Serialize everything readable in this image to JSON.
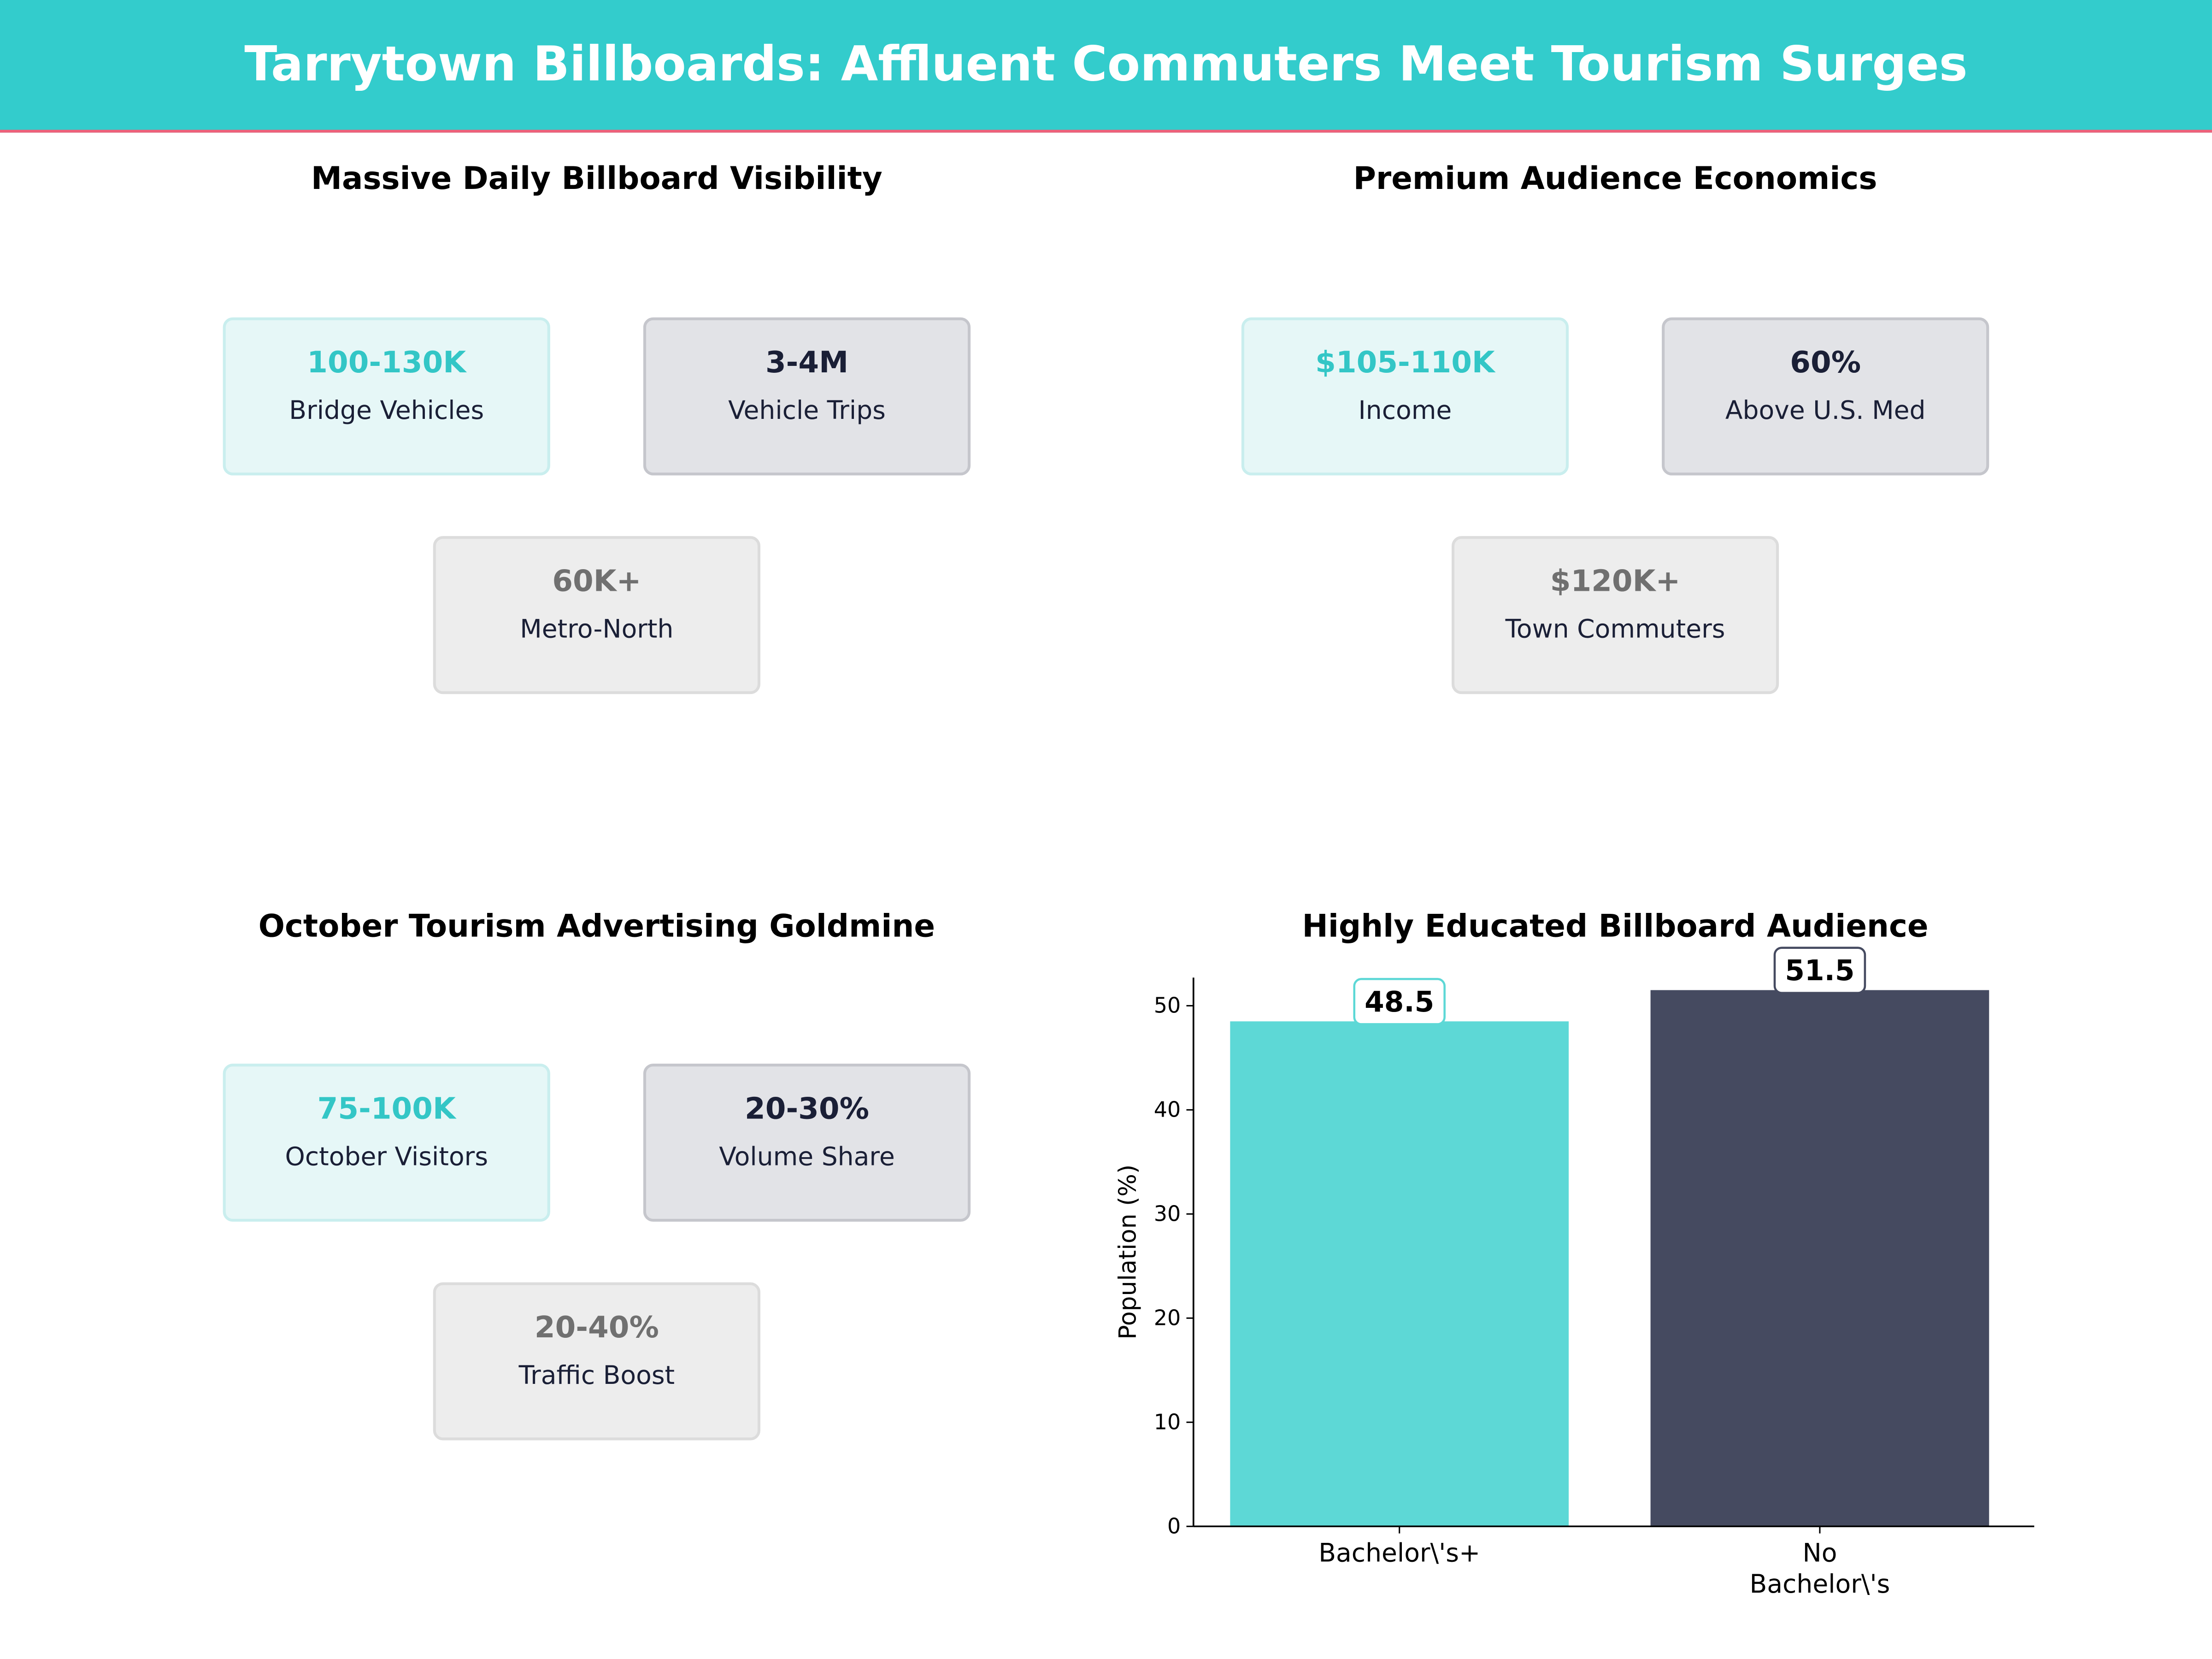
{
  "title": "Tarrytown Billboards: Affluent Commuters Meet Tourism Surges",
  "colors": {
    "header": "#33cccc",
    "accent_line": "#ef6079",
    "teal": "#5dd8d6",
    "navy": "#454a60"
  },
  "panels": [
    {
      "title": "Massive Daily Billboard Visibility",
      "cards": [
        {
          "value": "100-130K",
          "label": "Bridge Vehicles"
        },
        {
          "value": "3-4M",
          "label": "Vehicle Trips"
        },
        {
          "value": "60K+",
          "label": "Metro-North"
        }
      ]
    },
    {
      "title": "Premium Audience Economics",
      "cards": [
        {
          "value": "$105-110K",
          "label": "Income"
        },
        {
          "value": "60%",
          "label": "Above U.S. Med"
        },
        {
          "value": "$120K+",
          "label": "Town Commuters"
        }
      ]
    },
    {
      "title": "October Tourism Advertising Goldmine",
      "cards": [
        {
          "value": "75-100K",
          "label": "October Visitors"
        },
        {
          "value": "20-30%",
          "label": "Volume Share"
        },
        {
          "value": "20-40%",
          "label": "Traffic Boost"
        }
      ]
    }
  ],
  "chart_data": {
    "type": "bar",
    "title": "Highly Educated Billboard Audience",
    "categories": [
      "Bachelor\\'s+",
      "No\nBachelor\\'s"
    ],
    "values": [
      48.5,
      51.5
    ],
    "data_labels": [
      "48.5",
      "51.5"
    ],
    "colors": [
      "#5dd8d6",
      "#454a60"
    ],
    "ylabel": "Population (%)",
    "xlabel": "",
    "ylim": [
      0,
      52.7
    ],
    "yticks": [
      0,
      10,
      20,
      30,
      40,
      50
    ],
    "grid": false
  }
}
